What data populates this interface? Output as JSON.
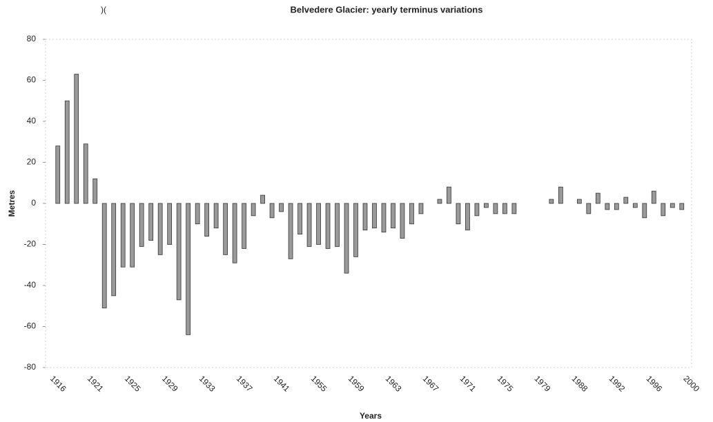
{
  "chart_data": {
    "type": "bar",
    "title": "Belvedere Glacier: yearly terminus variations",
    "annotation": ")(",
    "x_label": "Years",
    "y_label": "Metres",
    "categories": [
      "1916",
      null,
      null,
      null,
      "1921",
      null,
      null,
      null,
      "1925",
      null,
      null,
      null,
      "1929",
      null,
      null,
      null,
      "1933",
      null,
      null,
      null,
      "1937",
      null,
      null,
      null,
      "1941",
      null,
      null,
      null,
      "1955",
      null,
      null,
      null,
      "1959",
      null,
      null,
      null,
      "1963",
      null,
      null,
      null,
      "1967",
      null,
      null,
      null,
      "1971",
      null,
      null,
      null,
      "1975",
      null,
      null,
      null,
      "1979",
      null,
      null,
      null,
      "1988",
      null,
      null,
      null,
      "1992",
      null,
      null,
      null,
      "1996",
      null,
      null,
      null,
      "2000"
    ],
    "values": [
      28,
      50,
      63,
      29,
      12,
      -51,
      -45,
      -31,
      -31,
      -21,
      -18,
      -25,
      -20,
      -47,
      -64,
      -10,
      -16,
      -12,
      -25,
      -29,
      -22,
      -6,
      4,
      -7,
      -4,
      -27,
      -15,
      -21,
      -20,
      -22,
      -21,
      -34,
      -26,
      -13,
      -12,
      -14,
      -12,
      -17,
      -10,
      -5,
      null,
      2,
      8,
      -10,
      -13,
      -6,
      -2,
      -5,
      -5,
      -5,
      null,
      null,
      null,
      2,
      8,
      null,
      2,
      -5,
      5,
      -3,
      -3,
      3,
      -2,
      -7,
      6,
      -6,
      -2,
      -3,
      null
    ],
    "color": "#9a9a9a",
    "ylim": [
      -80,
      80
    ],
    "yticks": [
      -80,
      -60,
      -40,
      -20,
      0,
      20,
      40,
      60,
      80
    ],
    "grid": false
  }
}
